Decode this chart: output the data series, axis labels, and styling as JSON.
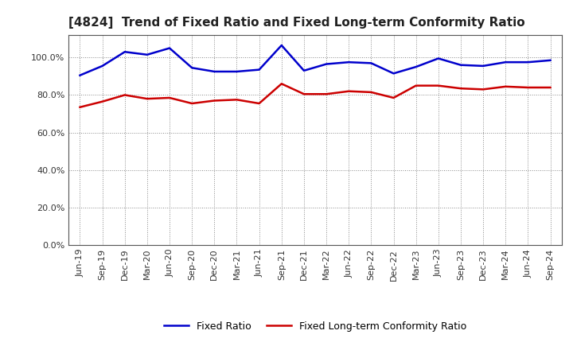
{
  "title": "[4824]  Trend of Fixed Ratio and Fixed Long-term Conformity Ratio",
  "x_labels": [
    "Jun-19",
    "Sep-19",
    "Dec-19",
    "Mar-20",
    "Jun-20",
    "Sep-20",
    "Dec-20",
    "Mar-21",
    "Jun-21",
    "Sep-21",
    "Dec-21",
    "Mar-22",
    "Jun-22",
    "Sep-22",
    "Dec-22",
    "Mar-23",
    "Jun-23",
    "Sep-23",
    "Dec-23",
    "Mar-24",
    "Jun-24",
    "Sep-24"
  ],
  "fixed_ratio": [
    90.5,
    95.5,
    103.0,
    101.5,
    105.0,
    94.5,
    92.5,
    92.5,
    93.5,
    106.5,
    93.0,
    96.5,
    97.5,
    97.0,
    91.5,
    95.0,
    99.5,
    96.0,
    95.5,
    97.5,
    97.5,
    98.5
  ],
  "fixed_lt_ratio": [
    73.5,
    76.5,
    80.0,
    78.0,
    78.5,
    75.5,
    77.0,
    77.5,
    75.5,
    86.0,
    80.5,
    80.5,
    82.0,
    81.5,
    78.5,
    85.0,
    85.0,
    83.5,
    83.0,
    84.5,
    84.0,
    84.0
  ],
  "fixed_ratio_color": "#0000cc",
  "fixed_lt_ratio_color": "#cc0000",
  "background_color": "#ffffff",
  "plot_bg_color": "#ffffff",
  "grid_color": "#888888",
  "yticks": [
    0.0,
    20.0,
    40.0,
    60.0,
    80.0,
    100.0
  ],
  "ylim": [
    0,
    112
  ],
  "legend_fixed": "Fixed Ratio",
  "legend_lt": "Fixed Long-term Conformity Ratio",
  "title_fontsize": 11,
  "tick_fontsize": 8,
  "legend_fontsize": 9
}
